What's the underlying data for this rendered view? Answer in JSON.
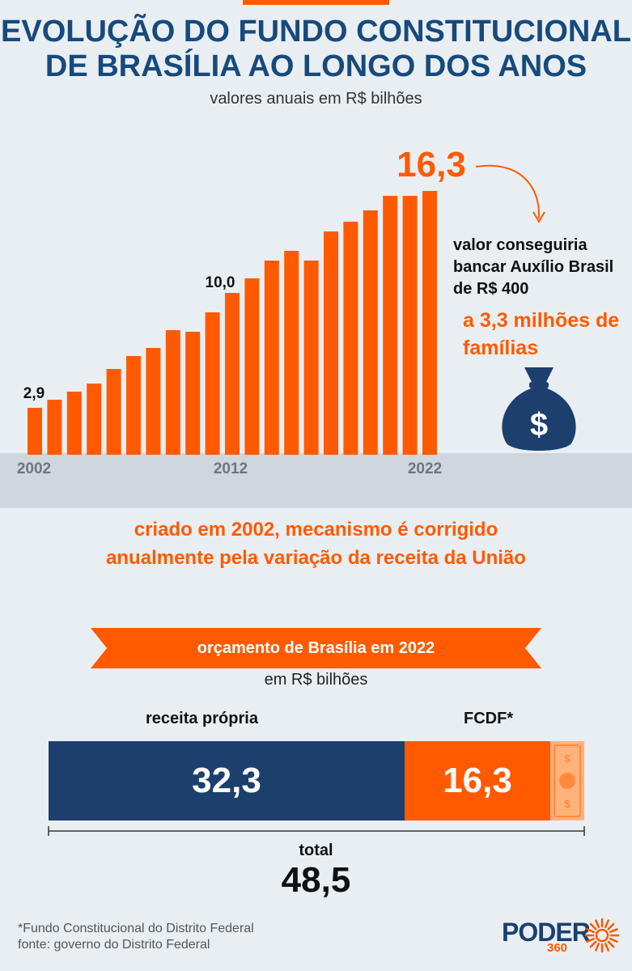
{
  "header": {
    "title_line1": "EVOLUÇÃO DO FUNDO CONSTITUCIONAL",
    "title_line2": "DE BRASÍLIA AO LONGO DOS ANOS",
    "subtitle": "valores anuais em R$ bilhões"
  },
  "chart_data": [
    {
      "type": "bar",
      "title": "EVOLUÇÃO DO FUNDO CONSTITUCIONAL DE BRASÍLIA AO LONGO DOS ANOS",
      "subtitle": "valores anuais em R$ bilhões",
      "categories": [
        "2002",
        "2003",
        "2004",
        "2005",
        "2006",
        "2007",
        "2008",
        "2009",
        "2010",
        "2011",
        "2012",
        "2013",
        "2014",
        "2015",
        "2016",
        "2017",
        "2018",
        "2019",
        "2020",
        "2021",
        "2022"
      ],
      "values": [
        2.9,
        3.4,
        3.9,
        4.4,
        5.3,
        6.1,
        6.6,
        7.7,
        7.6,
        8.8,
        10.0,
        10.9,
        12.0,
        12.6,
        12.0,
        13.8,
        14.4,
        15.1,
        16.0,
        16.0,
        16.3
      ],
      "tick_labels": [
        "2002",
        "2012",
        "2022"
      ],
      "data_labels": {
        "2002": "2,9",
        "2012": "10,0",
        "2022": "16,3"
      },
      "ylim": [
        0,
        16.5
      ],
      "grid": false,
      "colors": {
        "bars": "#ff5a00"
      }
    },
    {
      "type": "bar",
      "orientation": "horizontal-stacked",
      "title": "orçamento de Brasília em 2022",
      "subtitle": "em R$ bilhões",
      "series": [
        {
          "name": "receita própria",
          "values": [
            32.3
          ]
        },
        {
          "name": "FCDF*",
          "values": [
            16.3
          ]
        }
      ],
      "total": 48.5,
      "colors": {
        "receita própria": "#1c3f6e",
        "FCDF*": "#ff5a00"
      }
    }
  ],
  "chart_text": {
    "tick_2002": "2002",
    "tick_2012": "2012",
    "tick_2022": "2022",
    "label_2002": "2,9",
    "label_2012": "10,0",
    "label_2022": "16,3"
  },
  "callout": {
    "note": "valor conseguiria bancar Auxílio Brasil de R$ 400",
    "highlight": "a 3,3 milhões de famílias",
    "icon": "money-bag-icon"
  },
  "mechanism": {
    "line1": "criado em 2002, mecanismo é corrigido",
    "line2": "anualmente pela variação da receita da União"
  },
  "budget": {
    "title": "orçamento de Brasília em 2022",
    "unit": "em R$ bilhões",
    "receita_label": "receita própria",
    "receita_value": "32,3",
    "fcdf_label": "FCDF*",
    "fcdf_value": "16,3",
    "total_label": "total",
    "total_value": "48,5"
  },
  "footer": {
    "footnote": "*Fundo Constitucional do Distrito Federal",
    "source": "fonte: governo do Distrito Federal",
    "logo": "PODER",
    "logo_sub": "360"
  },
  "colors": {
    "orange": "#ff5a00",
    "navy": "#1c3f6e",
    "title_blue": "#174a7c",
    "background": "#e9eef2",
    "band": "#cfd7de"
  }
}
